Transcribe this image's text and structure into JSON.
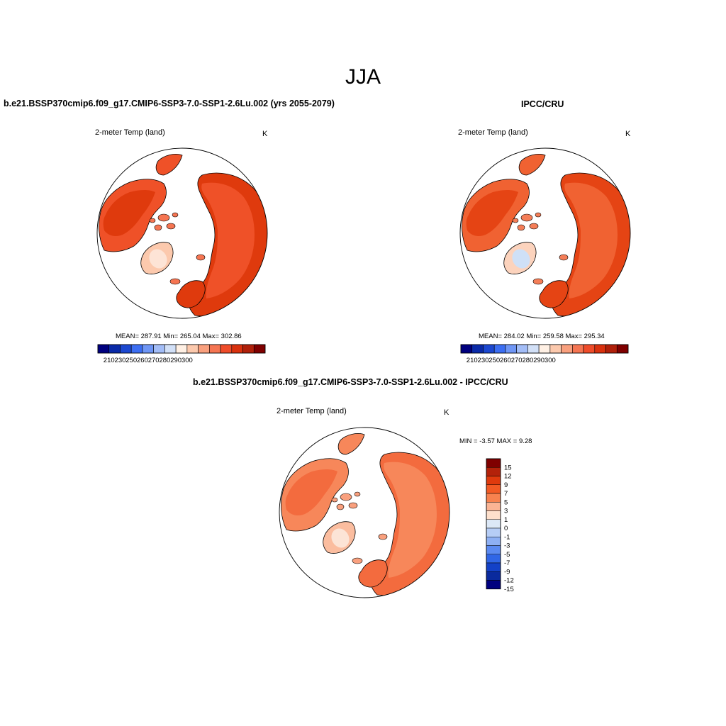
{
  "main_title": "JJA",
  "panels": [
    {
      "id": "model",
      "title": "b.e21.BSSP370cmip6.f09_g17.CMIP6-SSP3-7.0-SSP1-2.6Lu.002 (yrs 2055-2079)",
      "variable": "2-meter Temp (land)",
      "units": "K",
      "stats": "MEAN= 287.91  Min= 265.04  Max= 302.86"
    },
    {
      "id": "obs",
      "title": "IPCC/CRU",
      "variable": "2-meter Temp (land)",
      "units": "K",
      "stats": "MEAN= 284.02  Min= 259.58  Max= 295.34"
    },
    {
      "id": "diff",
      "title": "b.e21.BSSP370cmip6.f09_g17.CMIP6-SSP3-7.0-SSP1-2.6Lu.002 - IPCC/CRU",
      "variable": "2-meter Temp (land)",
      "units": "K",
      "stats": "MIN =  -3.57 MAX =   9.28"
    }
  ],
  "abs_colorbar": {
    "colors": [
      "#00007f",
      "#0a2aa8",
      "#1c48d0",
      "#3c6ef2",
      "#6f96f5",
      "#a3bdf7",
      "#d2e0f7",
      "#fff0e4",
      "#fcc9ad",
      "#f9a07e",
      "#f57552",
      "#ef4c2a",
      "#d9310e",
      "#b0200a",
      "#7f0000"
    ],
    "tick_labels": [
      "210",
      "230",
      "250",
      "260",
      "270",
      "280",
      "290",
      "300"
    ]
  },
  "diff_colorbar": {
    "colors": [
      "#7f0000",
      "#b3220a",
      "#df3a0d",
      "#f25a24",
      "#f7824f",
      "#fab494",
      "#fee0cc",
      "#dce8f7",
      "#b6cdf6",
      "#8eb0f4",
      "#5b8af1",
      "#3066e6",
      "#1341c7",
      "#0a2a9d",
      "#00007f"
    ],
    "tick_labels": [
      "15",
      "12",
      "9",
      "7",
      "5",
      "3",
      "1",
      "0",
      "-1",
      "-3",
      "-5",
      "-7",
      "-9",
      "-12",
      "-15"
    ]
  }
}
